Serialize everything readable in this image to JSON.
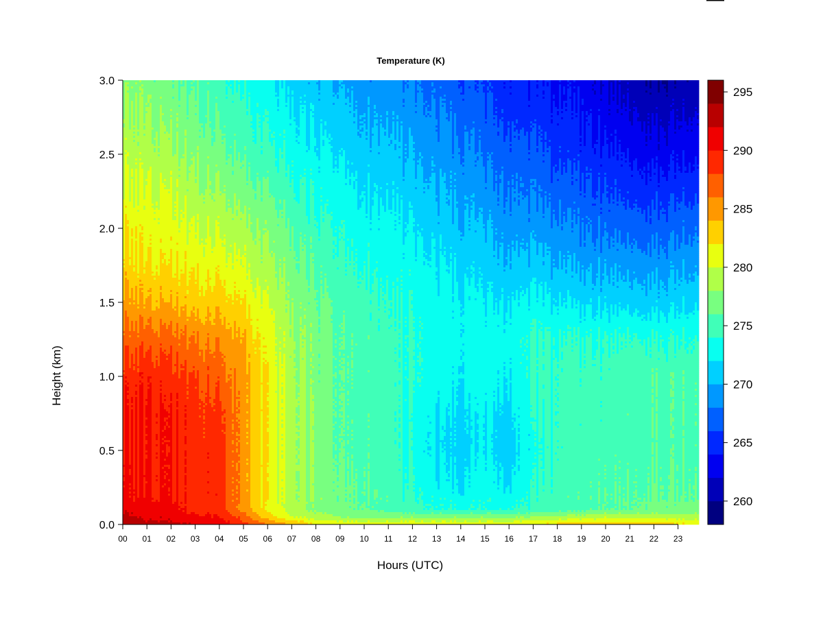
{
  "chart_data": {
    "type": "heatmap",
    "title": "Temperature (K)",
    "xlabel": "Hours (UTC)",
    "ylabel": "Height (km)",
    "xlim": [
      0,
      24
    ],
    "ylim": [
      0,
      3
    ],
    "x_ticks": [
      "00",
      "01",
      "02",
      "03",
      "04",
      "05",
      "06",
      "07",
      "08",
      "09",
      "10",
      "11",
      "12",
      "13",
      "14",
      "15",
      "16",
      "17",
      "18",
      "19",
      "20",
      "21",
      "22",
      "23"
    ],
    "y_ticks": [
      "0.0",
      "0.5",
      "1.0",
      "1.5",
      "2.0",
      "2.5",
      "3.0"
    ],
    "colorbar": {
      "min": 258,
      "max": 296,
      "levels": [
        258,
        260,
        262,
        264,
        266,
        268,
        270,
        272,
        274,
        276,
        278,
        280,
        282,
        284,
        286,
        288,
        290,
        292,
        294,
        296
      ],
      "tick_labels": [
        "260",
        "265",
        "270",
        "275",
        "280",
        "285",
        "290",
        "295"
      ],
      "colors": [
        "#000080",
        "#0000b8",
        "#0000f0",
        "#0028ff",
        "#0060ff",
        "#0098ff",
        "#00d0ff",
        "#08fff0",
        "#40ffb8",
        "#78ff80",
        "#b0ff48",
        "#e8ff10",
        "#ffd000",
        "#ff9800",
        "#ff6000",
        "#ff2800",
        "#f00000",
        "#b80000",
        "#800000"
      ]
    },
    "hours": [
      0,
      1,
      2,
      3,
      4,
      5,
      6,
      7,
      8,
      9,
      10,
      11,
      12,
      13,
      14,
      15,
      16,
      17,
      18,
      19,
      20,
      21,
      22,
      23,
      24
    ],
    "heights_km": [
      0,
      0.05,
      0.1,
      0.25,
      0.5,
      0.75,
      1.0,
      1.25,
      1.5,
      1.75,
      2.0,
      2.25,
      2.5,
      2.75,
      3.0
    ],
    "temperature_K": [
      [
        293.5,
        293,
        291.5,
        291,
        290.5,
        290,
        289,
        287,
        285,
        283,
        282,
        280.5,
        279.5,
        278.5,
        277.5
      ],
      [
        292.5,
        291.5,
        290.5,
        290,
        290,
        290,
        289.5,
        287,
        284,
        282,
        281,
        280,
        279,
        278,
        277
      ],
      [
        292.5,
        291.5,
        290.5,
        290,
        290,
        290,
        289,
        287,
        284,
        282,
        281,
        280,
        278.5,
        277.5,
        276.5
      ],
      [
        292,
        290.5,
        289.5,
        289,
        289,
        289,
        288,
        286,
        283,
        281.5,
        280,
        278.5,
        277.5,
        276.5,
        275.5
      ],
      [
        291.5,
        290,
        289,
        289,
        289,
        288.5,
        287,
        285.5,
        283,
        281,
        279.5,
        278,
        276.5,
        275.5,
        274.5
      ],
      [
        289,
        287,
        285,
        285,
        285,
        285,
        285,
        284,
        282,
        280,
        278.5,
        277,
        275.5,
        274.5,
        273.5
      ],
      [
        286,
        283,
        281.5,
        281.5,
        281.5,
        281.5,
        281.5,
        281,
        280,
        278.5,
        277.5,
        276,
        274.5,
        273.5,
        272.5
      ],
      [
        284,
        280.5,
        279,
        279,
        279,
        279,
        279,
        278.5,
        278,
        277,
        276,
        274.5,
        273.5,
        272.5,
        271.5
      ],
      [
        282,
        279,
        277.5,
        277.5,
        277.5,
        277.5,
        277,
        277,
        276.5,
        275.5,
        274.5,
        273.5,
        272.5,
        271.5,
        270.5
      ],
      [
        281.5,
        278,
        276.5,
        276.5,
        276,
        276,
        276,
        276,
        275.5,
        274.5,
        274,
        273,
        272,
        271,
        270
      ],
      [
        281.5,
        277.5,
        276,
        276,
        275.5,
        275.5,
        275.5,
        275.5,
        275,
        274,
        273,
        272,
        271,
        270,
        269
      ],
      [
        281.5,
        277.5,
        275.5,
        275,
        274.5,
        274.5,
        274.5,
        274.5,
        274,
        273,
        272.5,
        271.5,
        270.5,
        269.5,
        268.5
      ],
      [
        281.5,
        277.5,
        274.5,
        274,
        273.5,
        273.5,
        274,
        274,
        273.5,
        273,
        272,
        271,
        270,
        269,
        268
      ],
      [
        281.5,
        277.5,
        274,
        272.5,
        271.5,
        272,
        273,
        273,
        273,
        272,
        271,
        270,
        269,
        268,
        267
      ],
      [
        281.5,
        277.5,
        274,
        272,
        271,
        271.5,
        272.5,
        273,
        272.5,
        271.5,
        270.5,
        269.5,
        268.5,
        267.5,
        266.5
      ],
      [
        281.5,
        277.5,
        274,
        273,
        272,
        272,
        273,
        273,
        272,
        271,
        270,
        268.5,
        267.5,
        266.5,
        265.5
      ],
      [
        281.5,
        277.5,
        274,
        272,
        271,
        271.5,
        272.5,
        273,
        272,
        270.5,
        269,
        268,
        267,
        265.5,
        264.5
      ],
      [
        282,
        278,
        274.5,
        273.5,
        273,
        273.5,
        274,
        274,
        272.5,
        270.5,
        269,
        267.5,
        266.5,
        265,
        264
      ],
      [
        282.5,
        278.5,
        275,
        275,
        274.5,
        274.5,
        274.5,
        274,
        272,
        270,
        268.5,
        267,
        265.5,
        264.5,
        263.5
      ],
      [
        283,
        279,
        275.5,
        275,
        275,
        275,
        275,
        274,
        271.5,
        269.5,
        268,
        266.5,
        265,
        264,
        263
      ],
      [
        283,
        279.5,
        276,
        275.5,
        275,
        275,
        275,
        274,
        271.5,
        269.5,
        267.5,
        266,
        264.5,
        263,
        262
      ],
      [
        283,
        279.5,
        276,
        275.5,
        275,
        275,
        275,
        274,
        271,
        269,
        267,
        265,
        263.5,
        262,
        261
      ],
      [
        283,
        279.5,
        276.5,
        276,
        275.5,
        275.5,
        275.5,
        274,
        271,
        269,
        267,
        265,
        263,
        261.5,
        260
      ],
      [
        282.5,
        279,
        276.5,
        276,
        275.5,
        275.5,
        275.5,
        274,
        271.5,
        269.5,
        267.5,
        265.5,
        263.5,
        262,
        260.5
      ],
      [
        282,
        279,
        277,
        276.5,
        276,
        276,
        276,
        274.5,
        272,
        270,
        268,
        266,
        264,
        262.5,
        261
      ]
    ]
  }
}
